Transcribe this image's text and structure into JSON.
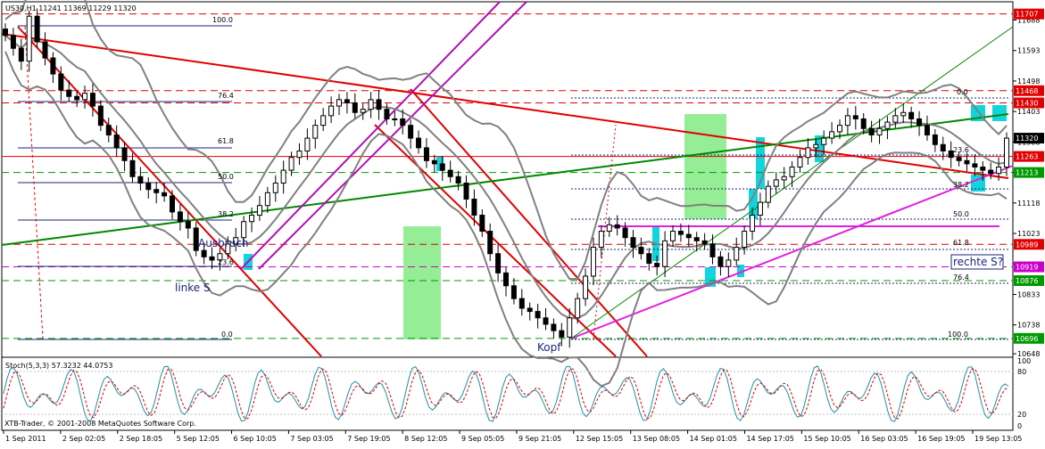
{
  "chart_data": {
    "type": "candlestick",
    "title": "US30,H1  11241 11369 11229 11320",
    "symbol": "US30",
    "timeframe": "H1",
    "ohlc_header": {
      "open": 11241,
      "high": 11369,
      "low": 11229,
      "close": 11320
    },
    "copyright": "XTB-Trader, © 2001-2008 MetaQuotes Software Corp.",
    "y_axis": {
      "ticks": [
        11688,
        11593,
        11498,
        11403,
        11308,
        11213,
        11118,
        11023,
        10928,
        10833,
        10738,
        10648
      ],
      "range": [
        10640,
        11745
      ]
    },
    "x_axis": {
      "labels": [
        "1 Sep 2011",
        "2 Sep 02:05",
        "2 Sep 18:05",
        "5 Sep 12:05",
        "6 Sep 10:05",
        "7 Sep 03:05",
        "7 Sep 19:05",
        "8 Sep 12:05",
        "9 Sep 05:05",
        "9 Sep 21:05",
        "12 Sep 15:05",
        "13 Sep 08:05",
        "14 Sep 01:05",
        "14 Sep 17:05",
        "15 Sep 10:05",
        "16 Sep 03:05",
        "16 Sep 19:05",
        "19 Sep 13:05"
      ]
    },
    "horizontal_levels": [
      {
        "value": 11707,
        "color": "#e00000",
        "style": "dash"
      },
      {
        "value": 11468,
        "color": "#e00000",
        "style": "dash"
      },
      {
        "value": 11430,
        "color": "#e00000",
        "style": "dash"
      },
      {
        "value": 11320,
        "color": "#000000",
        "style": "current"
      },
      {
        "value": 11263,
        "color": "#e00000",
        "style": "solid"
      },
      {
        "value": 11213,
        "color": "#009900",
        "style": "dash"
      },
      {
        "value": 10989,
        "color": "#e00000",
        "style": "dash"
      },
      {
        "value": 10919,
        "color": "#cc00cc",
        "style": "dash"
      },
      {
        "value": 10876,
        "color": "#009900",
        "style": "dash"
      },
      {
        "value": 10696,
        "color": "#009900",
        "style": "dash"
      }
    ],
    "fib_left_labels": [
      "100.0",
      "76.4",
      "61.8",
      "50.0",
      "38.2",
      "23.6",
      "0.0"
    ],
    "fib_right_labels": [
      "0.0",
      "23.6",
      "38.2",
      "50.0",
      "61.8",
      "76.4",
      "100.0"
    ],
    "annotations": [
      "Ausbruch",
      "linke S",
      "Kopf",
      "rechte S?"
    ],
    "sub_indicator": {
      "name": "Stoch(5,3,3)",
      "main": 57.3232,
      "signal": 44.0753,
      "levels": [
        80,
        20
      ],
      "ticks": [
        100,
        80,
        20,
        0
      ]
    },
    "series_close": [
      11640,
      11600,
      11560,
      11700,
      11620,
      11570,
      11520,
      11470,
      11450,
      11440,
      11460,
      11420,
      11360,
      11330,
      11290,
      11250,
      11200,
      11180,
      11160,
      11150,
      11140,
      11090,
      11060,
      11040,
      10970,
      10950,
      10940,
      10960,
      10990,
      11010,
      11060,
      11080,
      11110,
      11150,
      11180,
      11220,
      11260,
      11280,
      11320,
      11360,
      11390,
      11420,
      11440,
      11430,
      11400,
      11410,
      11440,
      11410,
      11380,
      11380,
      11360,
      11320,
      11290,
      11250,
      11240,
      11220,
      11200,
      11180,
      11130,
      11080,
      11030,
      10960,
      10900,
      10860,
      10820,
      10790,
      10780,
      10760,
      10740,
      10720,
      10700,
      10760,
      10820,
      10890,
      10980,
      11030,
      11050,
      11040,
      11010,
      10980,
      10960,
      10930,
      10920,
      11000,
      11030,
      11020,
      11010,
      11000,
      10990,
      10950,
      10920,
      10940,
      10980,
      11030,
      11080,
      11120,
      11170,
      11190,
      11200,
      11230,
      11260,
      11290,
      11300,
      11320,
      11340,
      11360,
      11390,
      11380,
      11350,
      11330,
      11350,
      11370,
      11390,
      11400,
      11380,
      11360,
      11330,
      11300,
      11280,
      11260,
      11250,
      11240,
      11230,
      11220,
      11210,
      11230,
      11320
    ]
  }
}
